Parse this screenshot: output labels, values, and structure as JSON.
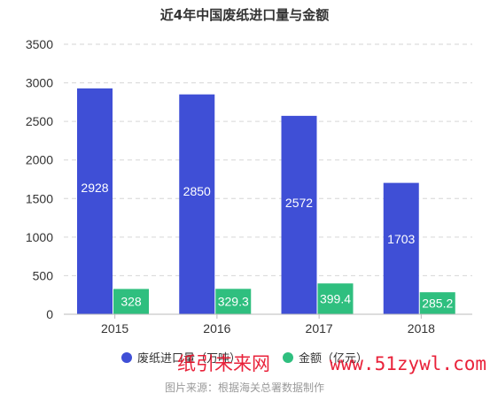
{
  "chart_data": {
    "type": "bar",
    "title": "近4年中国废纸进口量与金额",
    "categories": [
      "2015",
      "2016",
      "2017",
      "2018"
    ],
    "series": [
      {
        "name": "废纸进口量（万吨）",
        "color": "#3f4fd6",
        "values": [
          2928,
          2850,
          2572,
          1703
        ],
        "labels": [
          "2928",
          "2850",
          "2572",
          "1703"
        ]
      },
      {
        "name": "金额（亿元）",
        "color": "#2fbf7f",
        "values": [
          328,
          329.3,
          399.4,
          285.2
        ],
        "labels": [
          "328",
          "329.3",
          "399.4",
          "285.2"
        ]
      }
    ],
    "ylim": [
      0,
      3500
    ],
    "yticks": [
      "0",
      "500",
      "1000",
      "1500",
      "2000",
      "2500",
      "3000",
      "3500"
    ],
    "grid": true,
    "legend_position": "bottom"
  },
  "source_note": "图片来源：根据海关总署数据制作",
  "watermark": {
    "cn": "纸引未来网",
    "latin": "www.51zywl.com"
  }
}
